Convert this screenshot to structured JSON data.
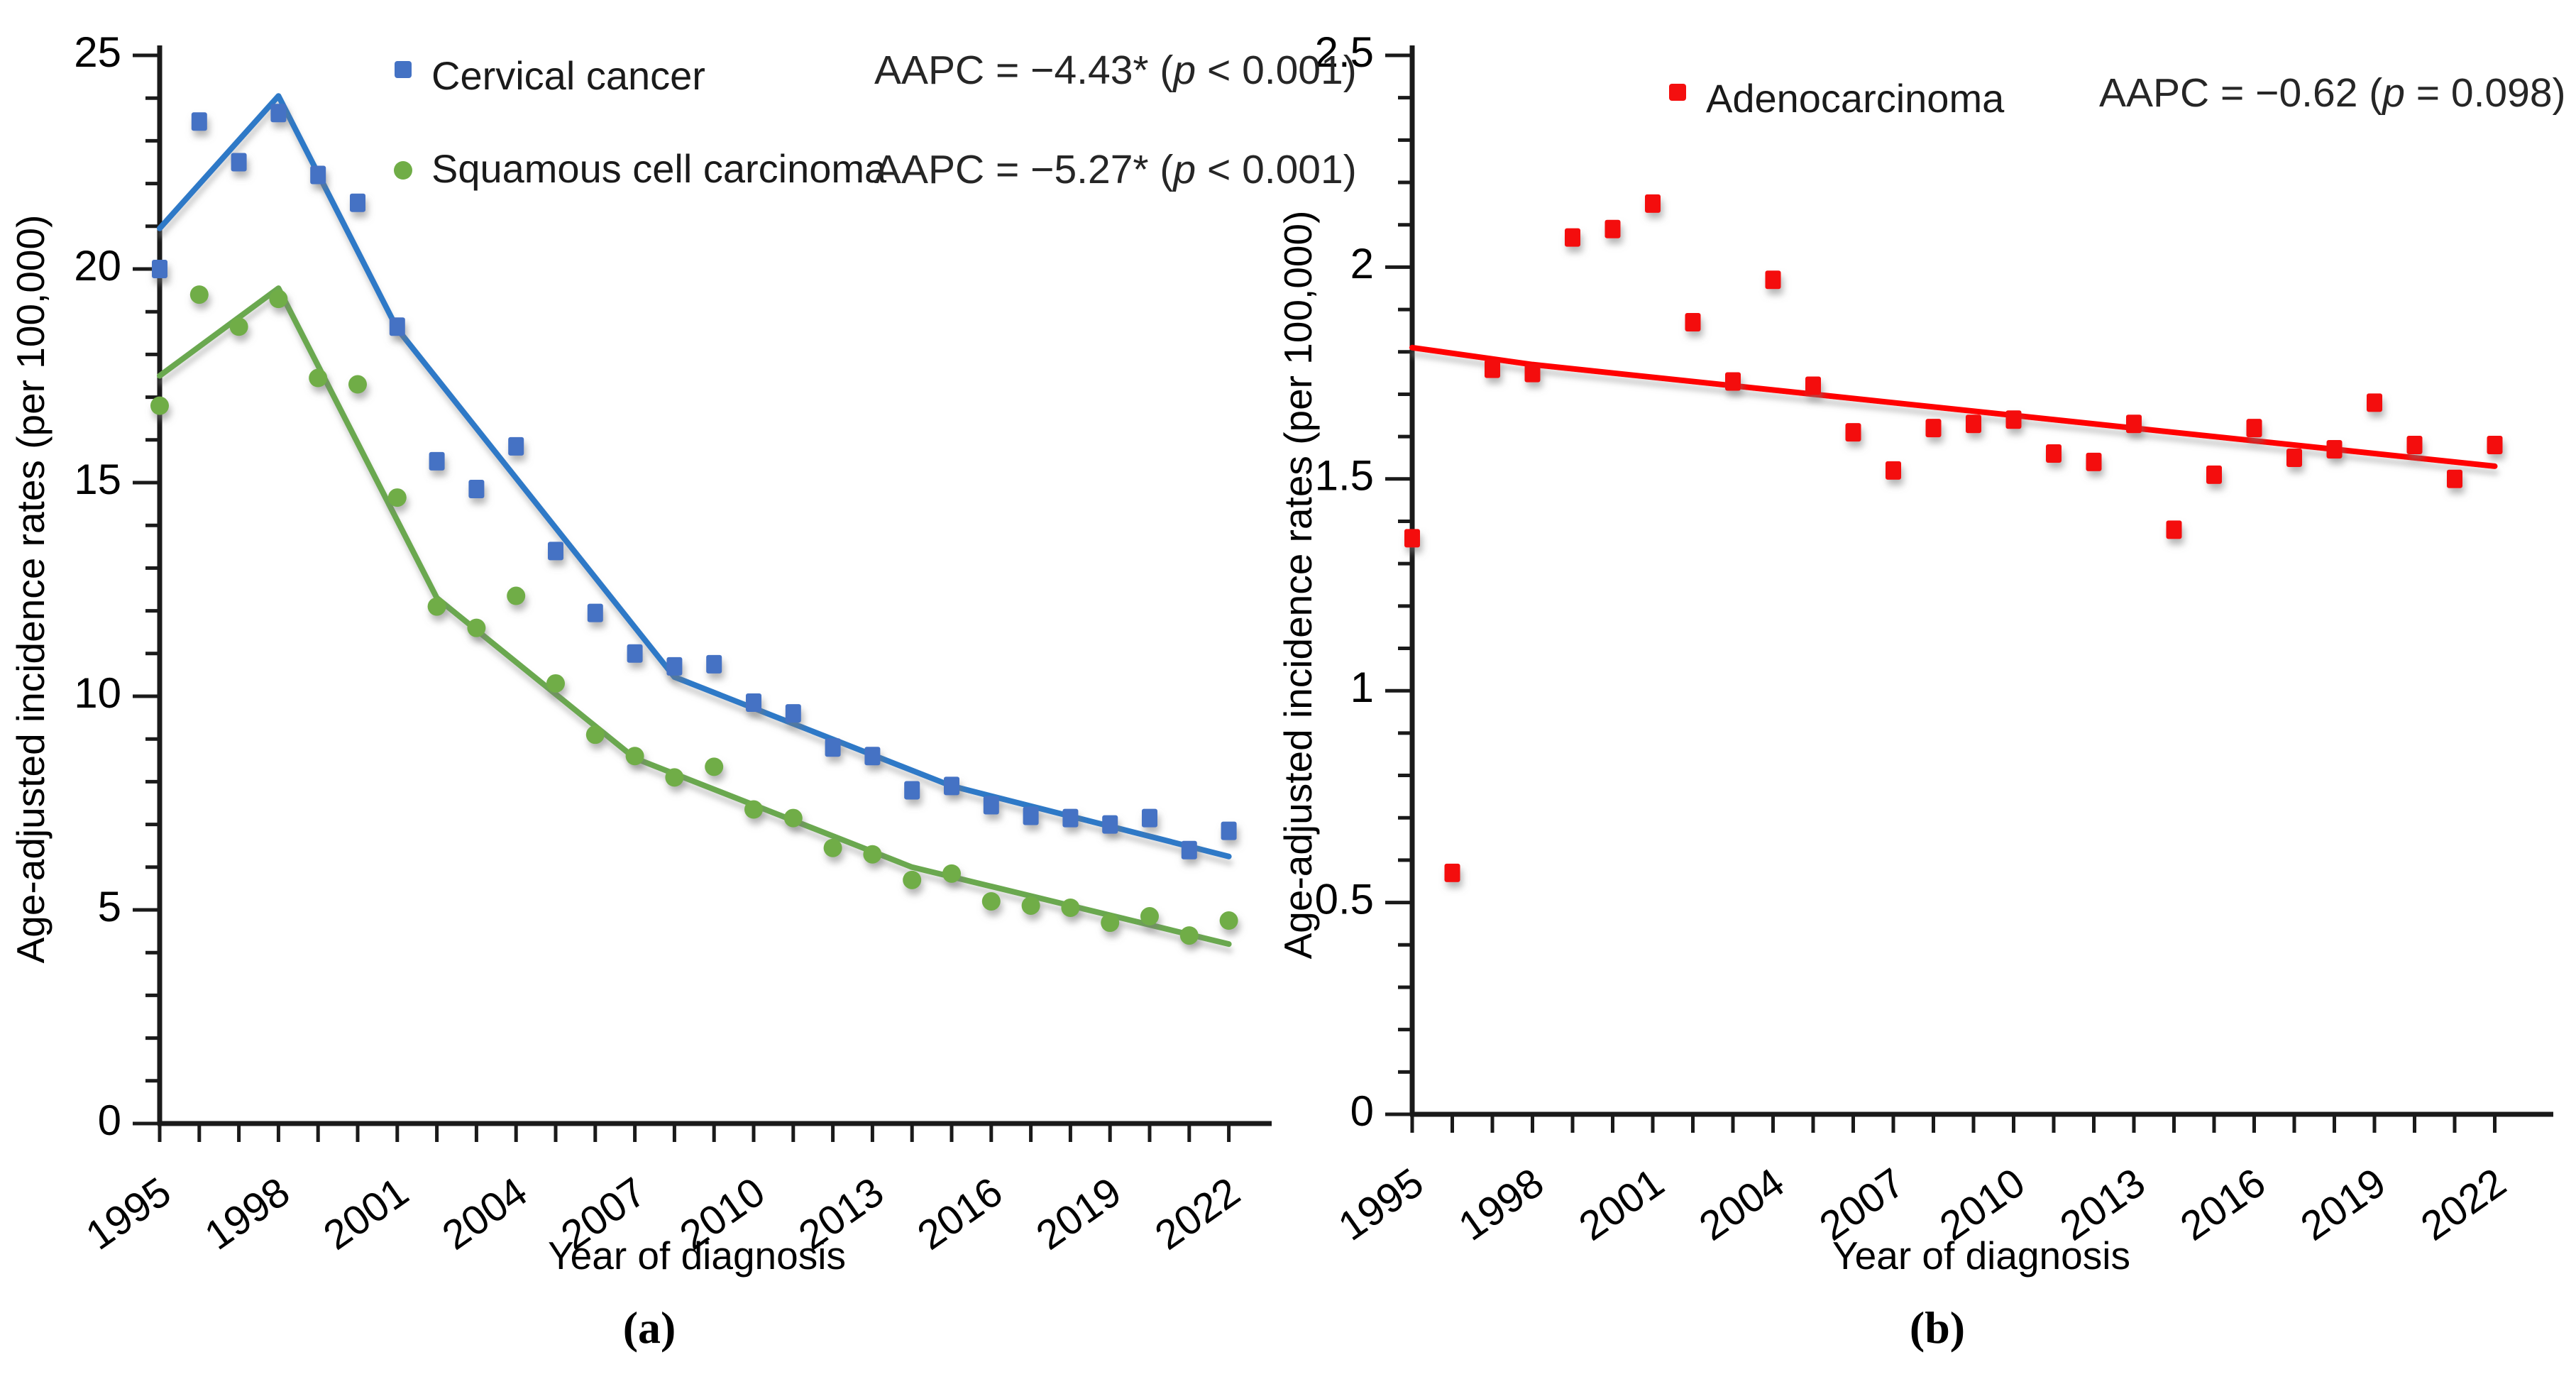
{
  "figure": {
    "y_axis_label": "Age-adjusted incidence rates (per 100,000)",
    "x_axis_label": "Year of diagnosis",
    "caption_a": "(a)",
    "caption_b": "(b)"
  },
  "panel_a": {
    "legend": [
      {
        "label": "Cervical cancer",
        "marker": "square",
        "color": "#4472C4"
      },
      {
        "label": "Squamous cell carcinoma",
        "marker": "circle",
        "color": "#70AD47"
      }
    ],
    "annotations": [
      {
        "prefix": "AAPC = −4.43* (",
        "p": "p",
        "suffix": " < 0.001)"
      },
      {
        "prefix": "AAPC = −5.27* (",
        "p": "p",
        "suffix": " < 0.001)"
      }
    ]
  },
  "panel_b": {
    "legend": [
      {
        "label": "Adenocarcinoma",
        "marker": "square",
        "color": "#F40F0F"
      }
    ],
    "annotations": [
      {
        "prefix": "AAPC = −0.62 (",
        "p": "p",
        "suffix": " = 0.098)"
      }
    ]
  },
  "chart_data": [
    {
      "panel": "a",
      "type": "scatter",
      "title": "",
      "xlabel": "Year of diagnosis",
      "ylabel": "Age-adjusted incidence rates (per 100,000)",
      "x": [
        1995,
        1996,
        1997,
        1998,
        1999,
        2000,
        2001,
        2002,
        2003,
        2004,
        2005,
        2006,
        2007,
        2008,
        2009,
        2010,
        2011,
        2012,
        2013,
        2014,
        2015,
        2016,
        2017,
        2018,
        2019,
        2020,
        2021,
        2022
      ],
      "x_tick_label_years": [
        1995,
        1998,
        2001,
        2004,
        2007,
        2010,
        2013,
        2016,
        2019,
        2022
      ],
      "ylim": [
        0,
        25
      ],
      "y_major_ticks": [
        0,
        5,
        10,
        15,
        20,
        25
      ],
      "y_major_labels": [
        "0",
        "5",
        "10",
        "15",
        "20",
        "25"
      ],
      "y_minor_step": 1,
      "grid": false,
      "series": [
        {
          "name": "Cervical cancer",
          "marker": "square",
          "color": "#4472C4",
          "values": [
            20.0,
            23.45,
            22.5,
            23.65,
            22.2,
            21.55,
            18.65,
            15.5,
            14.85,
            15.85,
            13.4,
            11.95,
            11.0,
            10.7,
            10.75,
            9.85,
            9.6,
            8.8,
            8.6,
            7.8,
            7.9,
            7.45,
            7.2,
            7.15,
            7.0,
            7.15,
            6.4,
            6.85
          ]
        },
        {
          "name": "Squamous cell carcinoma",
          "marker": "circle",
          "color": "#70AD47",
          "values": [
            16.8,
            19.4,
            18.65,
            19.3,
            17.45,
            17.3,
            14.65,
            12.1,
            11.6,
            12.35,
            10.3,
            9.1,
            8.6,
            8.1,
            8.35,
            7.35,
            7.15,
            6.45,
            6.3,
            5.7,
            5.85,
            5.2,
            5.1,
            5.05,
            4.7,
            4.85,
            4.4,
            4.75
          ]
        }
      ],
      "trend_lines": [
        {
          "series": "Cervical cancer",
          "color": "#2E79C7",
          "aapc": "-4.43*",
          "p_value": "p < 0.001",
          "joinpoints": [
            [
              1995,
              20.95
            ],
            [
              1998,
              24.05
            ],
            [
              2001,
              18.6
            ],
            [
              2008,
              10.45
            ],
            [
              2015,
              7.9
            ],
            [
              2022,
              6.25
            ]
          ]
        },
        {
          "series": "Squamous cell carcinoma",
          "color": "#6AA84F",
          "aapc": "-5.27*",
          "p_value": "p < 0.001",
          "joinpoints": [
            [
              1995,
              17.5
            ],
            [
              1998,
              19.55
            ],
            [
              2002,
              12.3
            ],
            [
              2007,
              8.55
            ],
            [
              2014,
              6.0
            ],
            [
              2022,
              4.2
            ]
          ]
        }
      ]
    },
    {
      "panel": "b",
      "type": "scatter",
      "title": "",
      "xlabel": "Year of diagnosis",
      "ylabel": "Age-adjusted incidence rates (per 100,000)",
      "x": [
        1995,
        1996,
        1997,
        1998,
        1999,
        2000,
        2001,
        2002,
        2003,
        2004,
        2005,
        2006,
        2007,
        2008,
        2009,
        2010,
        2011,
        2012,
        2013,
        2014,
        2015,
        2016,
        2017,
        2018,
        2019,
        2020,
        2021,
        2022
      ],
      "x_tick_label_years": [
        1995,
        1998,
        2001,
        2004,
        2007,
        2010,
        2013,
        2016,
        2019,
        2022
      ],
      "ylim": [
        0,
        2.5
      ],
      "y_major_ticks": [
        0,
        0.5,
        1,
        1.5,
        2,
        2.5
      ],
      "y_major_labels": [
        "0",
        "0.5",
        "1",
        "1.5",
        "2",
        "2.5"
      ],
      "y_minor_step": 0.1,
      "grid": false,
      "series": [
        {
          "name": "Adenocarcinoma",
          "marker": "square",
          "color": "#F40F0F",
          "values": [
            1.36,
            0.57,
            1.76,
            1.75,
            2.07,
            2.09,
            2.15,
            1.87,
            1.73,
            1.97,
            1.72,
            1.61,
            1.52,
            1.62,
            1.63,
            1.64,
            1.56,
            1.54,
            1.63,
            1.38,
            1.51,
            1.62,
            1.55,
            1.57,
            1.68,
            1.58,
            1.5,
            1.58
          ]
        }
      ],
      "trend_lines": [
        {
          "series": "Adenocarcinoma",
          "color": "#FF0000",
          "aapc": "-0.62",
          "p_value": "p = 0.098",
          "joinpoints": [
            [
              1995,
              1.81
            ],
            [
              1998,
              1.77
            ],
            [
              2022,
              1.53
            ]
          ]
        }
      ]
    }
  ]
}
